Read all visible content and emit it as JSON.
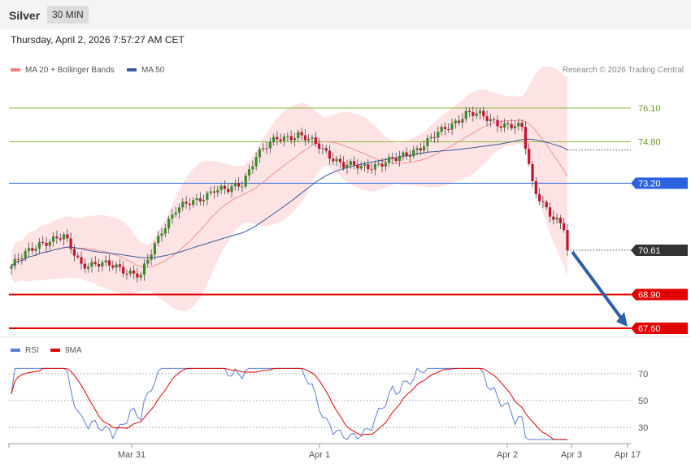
{
  "header": {
    "instrument": "Silver",
    "timeframe": "30 MIN"
  },
  "datetime": "Thursday, April 2, 2026 7:57:27 AM CET",
  "legend": {
    "ma20": {
      "label": "MA 20 + Bollinger Bands",
      "color": "#f08080"
    },
    "ma50": {
      "label": "MA 50",
      "color": "#3a5a9a"
    },
    "rsi": {
      "label": "RSI",
      "color": "#5b7fd6"
    },
    "ma9": {
      "label": "9MA",
      "color": "#e00000"
    }
  },
  "copyright": "Research © 2026 Trading Central",
  "chart_data": {
    "type": "candlestick",
    "y_range": [
      67.2,
      77.2
    ],
    "levels": [
      {
        "value": 76.1,
        "label": "76.10",
        "color": "#8cbf3f",
        "kind": "resistance"
      },
      {
        "value": 74.8,
        "label": "74.80",
        "color": "#8cbf3f",
        "kind": "resistance"
      },
      {
        "value": 73.2,
        "label": "73.20",
        "color": "#2a62e0",
        "kind": "pivot"
      },
      {
        "value": 70.61,
        "label": "70.61",
        "color": "#333333",
        "kind": "last"
      },
      {
        "value": 68.9,
        "label": "68.90",
        "color": "#e00000",
        "kind": "support"
      },
      {
        "value": 67.6,
        "label": "67.60",
        "color": "#e00000",
        "kind": "support"
      }
    ],
    "x_labels": [
      "Mar 31",
      "Apr 1",
      "Apr 2",
      "Apr 3",
      "Apr 17"
    ],
    "forecast": {
      "from": 70.61,
      "to": 67.6,
      "direction": "down"
    },
    "rsi": {
      "levels": [
        70,
        50,
        30
      ],
      "level_labels": [
        "70",
        "50",
        "30"
      ],
      "range": [
        20,
        80
      ]
    }
  }
}
